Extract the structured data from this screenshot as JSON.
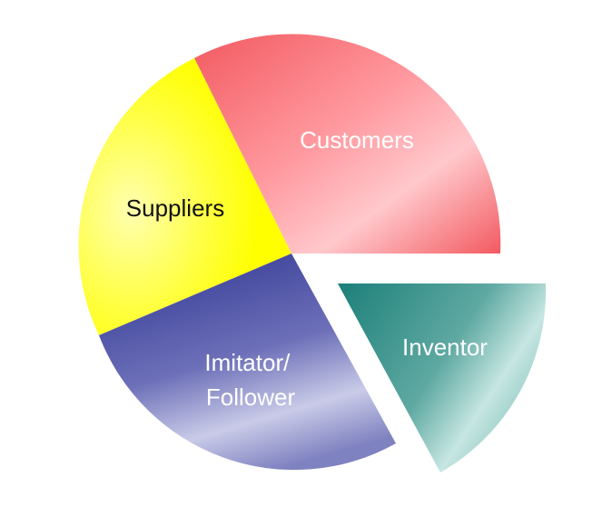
{
  "diagram": {
    "segments": [
      {
        "key": "customers",
        "label": "Customers",
        "label_color": "#ffffff",
        "color_light": "#ffc8cc",
        "color_dark": "#f25a60",
        "exploded": false
      },
      {
        "key": "inventor",
        "label": "Inventor",
        "label_color": "#ffffff",
        "color_light": "#c6e6e2",
        "color_dark": "#1b7f79",
        "exploded": true
      },
      {
        "key": "imitator",
        "label_lines": [
          "Imitator/",
          "Follower"
        ],
        "label_color": "#ffffff",
        "color_light": "#c9cbe8",
        "color_dark": "#353a95",
        "exploded": false
      },
      {
        "key": "suppliers",
        "label": "Suppliers",
        "label_color": "#111111",
        "color_light": "#ffffb0",
        "color_dark": "#ffff00",
        "exploded": false
      }
    ]
  }
}
